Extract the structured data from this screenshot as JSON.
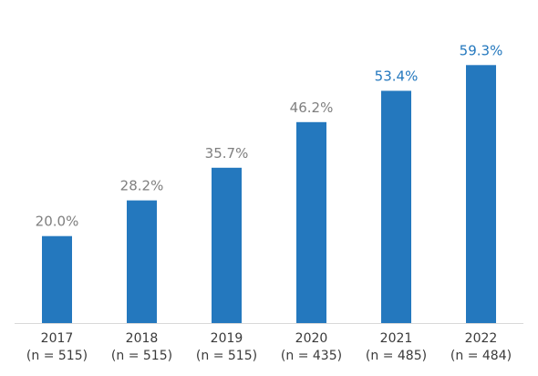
{
  "chart_data": {
    "type": "bar",
    "categories": [
      "2017",
      "2018",
      "2019",
      "2020",
      "2021",
      "2022"
    ],
    "sample_sizes": [
      "(n = 515)",
      "(n = 515)",
      "(n = 515)",
      "(n = 435)",
      "(n = 485)",
      "(n = 484)"
    ],
    "values": [
      20.0,
      28.2,
      35.7,
      46.2,
      53.4,
      59.3
    ],
    "value_labels": [
      "20.0%",
      "28.2%",
      "35.7%",
      "46.2%",
      "53.4%",
      "59.3%"
    ],
    "highlighted": [
      false,
      false,
      false,
      false,
      true,
      true
    ],
    "title": "",
    "xlabel": "",
    "ylabel": "",
    "ylim": [
      0,
      60
    ],
    "grid": false,
    "legend": "none",
    "colors": {
      "bar": "#2478be",
      "label": "#7f7f7f",
      "label_highlight": "#2478be",
      "axis": "#d9d9d9",
      "tick_text": "#3a3a3a"
    }
  }
}
